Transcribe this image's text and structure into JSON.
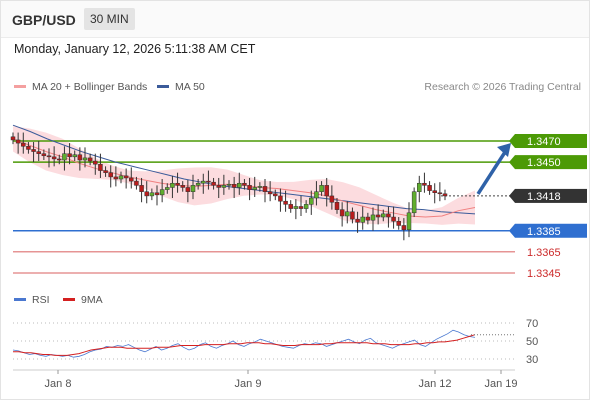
{
  "header": {
    "pair": "GBP/USD",
    "timeframe": "30 MIN"
  },
  "timestamp": "Monday, January 12, 2026 5:11:38 AM CET",
  "legend": {
    "ma20_bb": "MA 20 + Bollinger Bands",
    "ma50": "MA 50",
    "rsi": "RSI",
    "ma9": "9MA"
  },
  "credit": "Research © 2026 Trading Central",
  "colors": {
    "resistance": "#4c9a06",
    "support": "#2f6fd0",
    "minor": "#cc2a2a",
    "bb_fill": "#fbd0d4",
    "ma20": "#f08080",
    "ma50": "#3b5b9a",
    "price_box": "#333333",
    "arrow": "#2f62a8",
    "rsi": "#4a78d0",
    "ma9": "#d42020"
  },
  "chart_data": {
    "type": "candlestick",
    "instrument": "GBP/USD",
    "timeframe": "30 MIN",
    "current_price": 1.3418,
    "x_tick_labels": [
      "Jan 8",
      "Jan 9",
      "Jan 12",
      "Jan 19"
    ],
    "levels": [
      {
        "value": 1.347,
        "label": "1.3470",
        "kind": "resistance",
        "boxed": true
      },
      {
        "value": 1.345,
        "label": "1.3450",
        "kind": "resistance",
        "boxed": true
      },
      {
        "value": 1.3418,
        "label": "1.3418",
        "kind": "current",
        "boxed": true
      },
      {
        "value": 1.3385,
        "label": "1.3385",
        "kind": "pivot",
        "boxed": true
      },
      {
        "value": 1.3365,
        "label": "1.3365",
        "kind": "support",
        "boxed": false
      },
      {
        "value": 1.3345,
        "label": "1.3345",
        "kind": "support",
        "boxed": false
      }
    ],
    "forecast": {
      "from": 1.3418,
      "to": 1.347,
      "direction": "up"
    },
    "close_series": [
      1.3471,
      1.3468,
      1.3465,
      1.3462,
      1.346,
      1.3458,
      1.3456,
      1.3455,
      1.3453,
      1.3452,
      1.3458,
      1.3455,
      1.3457,
      1.3452,
      1.3454,
      1.3451,
      1.3448,
      1.3442,
      1.344,
      1.3436,
      1.3434,
      1.3437,
      1.3435,
      1.3432,
      1.3428,
      1.3422,
      1.3418,
      1.3421,
      1.3419,
      1.3424,
      1.3426,
      1.343,
      1.3428,
      1.3426,
      1.3422,
      1.3428,
      1.343,
      1.3432,
      1.3431,
      1.3428,
      1.3426,
      1.3428,
      1.3429,
      1.3426,
      1.343,
      1.3428,
      1.3424,
      1.3426,
      1.3427,
      1.3422,
      1.342,
      1.3418,
      1.3413,
      1.341,
      1.3406,
      1.3408,
      1.3406,
      1.341,
      1.3416,
      1.3422,
      1.3428,
      1.3418,
      1.3412,
      1.3405,
      1.3399,
      1.3403,
      1.3396,
      1.3393,
      1.3398,
      1.3395,
      1.34,
      1.3398,
      1.3401,
      1.3398,
      1.3394,
      1.339,
      1.3386,
      1.3402,
      1.3422,
      1.343,
      1.3428,
      1.3423,
      1.3421,
      1.342,
      1.3418
    ],
    "ma50": [
      1.3485,
      1.3479,
      1.3472,
      1.3466,
      1.346,
      1.3455,
      1.345,
      1.3446,
      1.3442,
      1.3438,
      1.3434,
      1.3431,
      1.3428,
      1.3426,
      1.3424,
      1.3422,
      1.342,
      1.3418,
      1.3416,
      1.3414,
      1.3412,
      1.341,
      1.3408,
      1.3406,
      1.3405,
      1.3403,
      1.3402,
      1.3401
    ],
    "ma20": [
      1.3472,
      1.3466,
      1.346,
      1.3455,
      1.3449,
      1.3444,
      1.344,
      1.3436,
      1.3433,
      1.343,
      1.3428,
      1.3427,
      1.3428,
      1.3429,
      1.3428,
      1.3426,
      1.3425,
      1.3423,
      1.3421,
      1.3418,
      1.3413,
      1.3409,
      1.3405,
      1.3402,
      1.3399,
      1.3398,
      1.3399,
      1.3404,
      1.3407
    ],
    "rsi_axis": {
      "min": 20,
      "max": 80,
      "ticks": [
        70,
        50,
        30
      ]
    },
    "rsi": [
      40,
      39,
      37,
      35,
      36,
      34,
      33,
      35,
      34,
      33,
      34,
      32,
      33,
      35,
      38,
      40,
      41,
      44,
      43,
      45,
      44,
      46,
      43,
      40,
      38,
      41,
      44,
      40,
      42,
      45,
      47,
      43,
      40,
      42,
      46,
      48,
      44,
      42,
      45,
      47,
      50,
      46,
      44,
      47,
      49,
      52,
      50,
      48,
      46,
      44,
      43,
      42,
      45,
      47,
      46,
      48,
      47,
      44,
      46,
      48,
      50,
      52,
      49,
      47,
      51,
      53,
      48,
      46,
      44,
      42,
      45,
      47,
      49,
      51,
      46,
      44,
      48,
      52,
      55,
      58,
      62,
      60,
      57,
      55,
      54
    ],
    "ma9_values": [
      38,
      38,
      37,
      37,
      36,
      35,
      35,
      34,
      34,
      34,
      35,
      36,
      38,
      40,
      41,
      42,
      43,
      43,
      43,
      42,
      42,
      42,
      42,
      42,
      43,
      43,
      43,
      44,
      45,
      45,
      45,
      45,
      46,
      46,
      46,
      46,
      47,
      47,
      47,
      48,
      48,
      48,
      47,
      47,
      46,
      45,
      45,
      45,
      46,
      46,
      46,
      46,
      47,
      47,
      48,
      48,
      48,
      48,
      48,
      48,
      47,
      47,
      47,
      46,
      46,
      46,
      46,
      47,
      47,
      48,
      48,
      49,
      49,
      50,
      51,
      53,
      55,
      57
    ]
  }
}
